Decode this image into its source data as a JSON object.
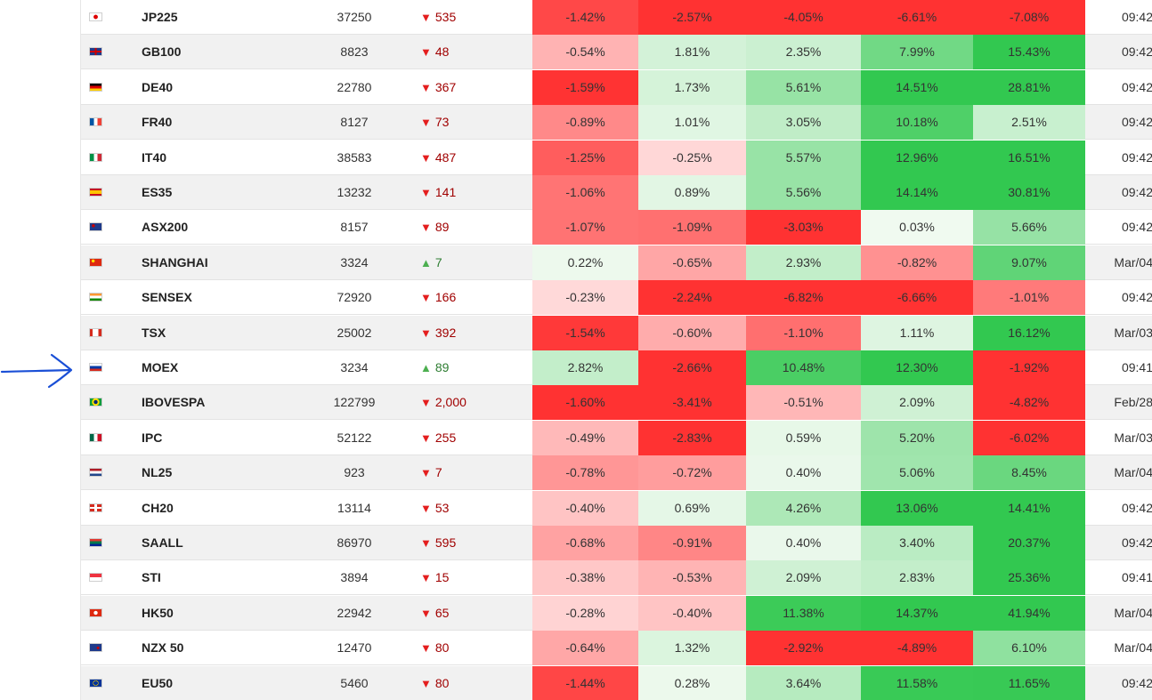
{
  "rows": [
    {
      "name": "JP225",
      "price": "37250",
      "change": "535",
      "dir": "down",
      "p1": "-1.42%",
      "p2": "-2.57%",
      "p3": "-4.05%",
      "p4": "-6.61%",
      "p5": "-7.08%",
      "time": "09:42"
    },
    {
      "name": "GB100",
      "price": "8823",
      "change": "48",
      "dir": "down",
      "p1": "-0.54%",
      "p2": "1.81%",
      "p3": "2.35%",
      "p4": "7.99%",
      "p5": "15.43%",
      "time": "09:42"
    },
    {
      "name": "DE40",
      "price": "22780",
      "change": "367",
      "dir": "down",
      "p1": "-1.59%",
      "p2": "1.73%",
      "p3": "5.61%",
      "p4": "14.51%",
      "p5": "28.81%",
      "time": "09:42"
    },
    {
      "name": "FR40",
      "price": "8127",
      "change": "73",
      "dir": "down",
      "p1": "-0.89%",
      "p2": "1.01%",
      "p3": "3.05%",
      "p4": "10.18%",
      "p5": "2.51%",
      "time": "09:42"
    },
    {
      "name": "IT40",
      "price": "38583",
      "change": "487",
      "dir": "down",
      "p1": "-1.25%",
      "p2": "-0.25%",
      "p3": "5.57%",
      "p4": "12.96%",
      "p5": "16.51%",
      "time": "09:42"
    },
    {
      "name": "ES35",
      "price": "13232",
      "change": "141",
      "dir": "down",
      "p1": "-1.06%",
      "p2": "0.89%",
      "p3": "5.56%",
      "p4": "14.14%",
      "p5": "30.81%",
      "time": "09:42"
    },
    {
      "name": "ASX200",
      "price": "8157",
      "change": "89",
      "dir": "down",
      "p1": "-1.07%",
      "p2": "-1.09%",
      "p3": "-3.03%",
      "p4": "0.03%",
      "p5": "5.66%",
      "time": "09:42"
    },
    {
      "name": "SHANGHAI",
      "price": "3324",
      "change": "7",
      "dir": "up",
      "p1": "0.22%",
      "p2": "-0.65%",
      "p3": "2.93%",
      "p4": "-0.82%",
      "p5": "9.07%",
      "time": "Mar/04"
    },
    {
      "name": "SENSEX",
      "price": "72920",
      "change": "166",
      "dir": "down",
      "p1": "-0.23%",
      "p2": "-2.24%",
      "p3": "-6.82%",
      "p4": "-6.66%",
      "p5": "-1.01%",
      "time": "09:42"
    },
    {
      "name": "TSX",
      "price": "25002",
      "change": "392",
      "dir": "down",
      "p1": "-1.54%",
      "p2": "-0.60%",
      "p3": "-1.10%",
      "p4": "1.11%",
      "p5": "16.12%",
      "time": "Mar/03"
    },
    {
      "name": "MOEX",
      "price": "3234",
      "change": "89",
      "dir": "up",
      "p1": "2.82%",
      "p2": "-2.66%",
      "p3": "10.48%",
      "p4": "12.30%",
      "p5": "-1.92%",
      "time": "09:41"
    },
    {
      "name": "IBOVESPA",
      "price": "122799",
      "change": "2,000",
      "dir": "down",
      "p1": "-1.60%",
      "p2": "-3.41%",
      "p3": "-0.51%",
      "p4": "2.09%",
      "p5": "-4.82%",
      "time": "Feb/28"
    },
    {
      "name": "IPC",
      "price": "52122",
      "change": "255",
      "dir": "down",
      "p1": "-0.49%",
      "p2": "-2.83%",
      "p3": "0.59%",
      "p4": "5.20%",
      "p5": "-6.02%",
      "time": "Mar/03"
    },
    {
      "name": "NL25",
      "price": "923",
      "change": "7",
      "dir": "down",
      "p1": "-0.78%",
      "p2": "-0.72%",
      "p3": "0.40%",
      "p4": "5.06%",
      "p5": "8.45%",
      "time": "Mar/04"
    },
    {
      "name": "CH20",
      "price": "13114",
      "change": "53",
      "dir": "down",
      "p1": "-0.40%",
      "p2": "0.69%",
      "p3": "4.26%",
      "p4": "13.06%",
      "p5": "14.41%",
      "time": "09:42"
    },
    {
      "name": "SAALL",
      "price": "86970",
      "change": "595",
      "dir": "down",
      "p1": "-0.68%",
      "p2": "-0.91%",
      "p3": "0.40%",
      "p4": "3.40%",
      "p5": "20.37%",
      "time": "09:42"
    },
    {
      "name": "STI",
      "price": "3894",
      "change": "15",
      "dir": "down",
      "p1": "-0.38%",
      "p2": "-0.53%",
      "p3": "2.09%",
      "p4": "2.83%",
      "p5": "25.36%",
      "time": "09:41"
    },
    {
      "name": "HK50",
      "price": "22942",
      "change": "65",
      "dir": "down",
      "p1": "-0.28%",
      "p2": "-0.40%",
      "p3": "11.38%",
      "p4": "14.37%",
      "p5": "41.94%",
      "time": "Mar/04"
    },
    {
      "name": "NZX 50",
      "price": "12470",
      "change": "80",
      "dir": "down",
      "p1": "-0.64%",
      "p2": "1.32%",
      "p3": "-2.92%",
      "p4": "-4.89%",
      "p5": "6.10%",
      "time": "Mar/04"
    },
    {
      "name": "EU50",
      "price": "5460",
      "change": "80",
      "dir": "down",
      "p1": "-1.44%",
      "p2": "0.28%",
      "p3": "3.64%",
      "p4": "11.58%",
      "p5": "11.65%",
      "time": "09:42"
    }
  ],
  "icons": {
    "arrow": "right-arrow-annotation-icon",
    "up": "triangle-up-icon",
    "down": "triangle-down-icon"
  },
  "colors": {
    "arrow": "#1a4fd6",
    "down_text": "#a00000",
    "down_triangle": "#e41e1e",
    "up_text": "#2e7d32",
    "up_triangle": "#4caf50"
  }
}
